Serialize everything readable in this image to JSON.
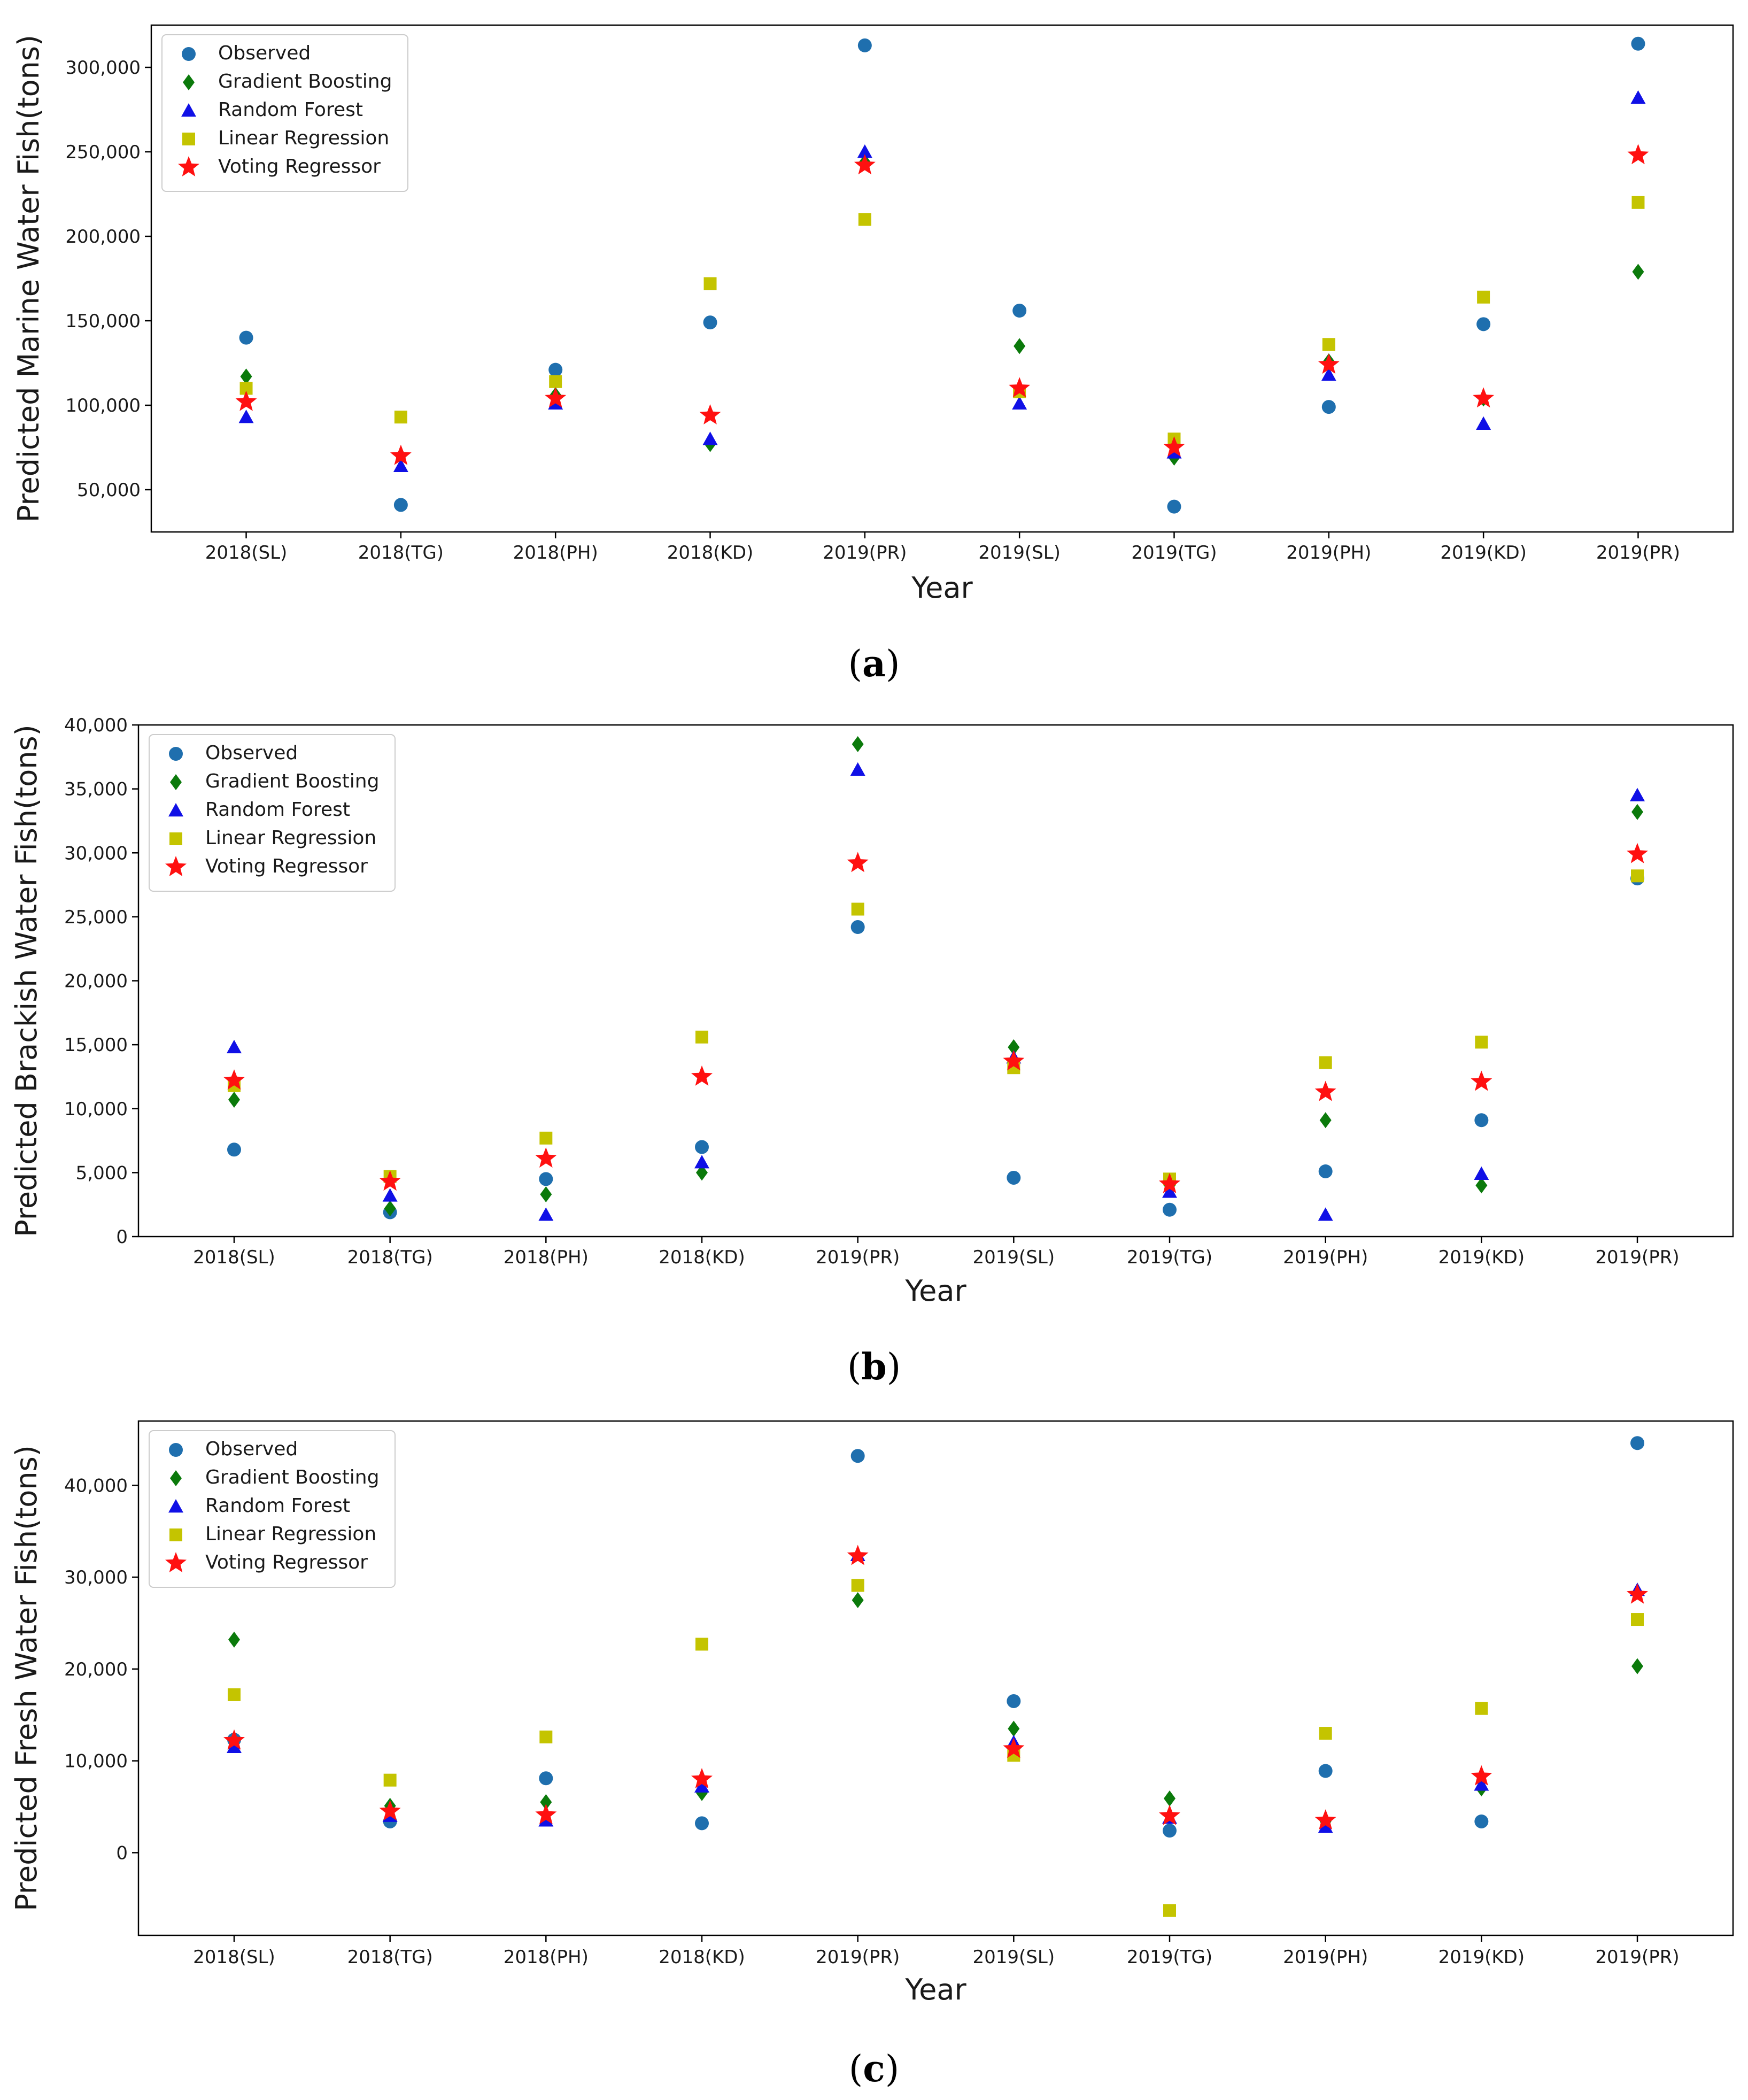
{
  "style": {
    "series_colors": {
      "Observed": "#1f6fae",
      "Gradient Boosting": "#0b7a0b",
      "Random Forest": "#1010e6",
      "Linear Regression": "#c4c400",
      "Voting Regressor": "#ff1010"
    },
    "series_markers": {
      "Observed": "circle",
      "Gradient Boosting": "diamond",
      "Random Forest": "triangle",
      "Linear Regression": "square",
      "Voting Regressor": "star"
    }
  },
  "chart_data": [
    {
      "type": "scatter",
      "panel_label": "a",
      "xlabel": "Year",
      "ylabel": "Predicted Marine Water Fish(tons)",
      "categories": [
        "2018(SL)",
        "2018(TG)",
        "2018(PH)",
        "2018(KD)",
        "2019(PR)",
        "2019(SL)",
        "2019(TG)",
        "2019(PH)",
        "2019(KD)",
        "2019(PR)"
      ],
      "ylim": [
        25000,
        325000
      ],
      "yticks": [
        50000,
        100000,
        150000,
        200000,
        250000,
        300000
      ],
      "ytick_labels": [
        "50,000",
        "100,000",
        "150,000",
        "200,000",
        "250,000",
        "300,000"
      ],
      "legend_position": "top-left",
      "series": [
        {
          "name": "Observed",
          "values": [
            140000,
            41000,
            121000,
            149000,
            313000,
            156000,
            40000,
            99000,
            148000,
            314000
          ]
        },
        {
          "name": "Gradient Boosting",
          "values": [
            117000,
            70000,
            106000,
            77000,
            244000,
            135000,
            69000,
            126000,
            104000,
            179000
          ]
        },
        {
          "name": "Random Forest",
          "values": [
            93000,
            64000,
            101000,
            80000,
            250000,
            101000,
            72000,
            118000,
            89000,
            282000
          ]
        },
        {
          "name": "Linear Regression",
          "values": [
            110000,
            93000,
            114000,
            172000,
            210000,
            108000,
            80000,
            136000,
            164000,
            220000
          ]
        },
        {
          "name": "Voting Regressor",
          "values": [
            102000,
            70000,
            104000,
            94000,
            242000,
            110000,
            75000,
            124000,
            104000,
            248000
          ]
        }
      ]
    },
    {
      "type": "scatter",
      "panel_label": "b",
      "xlabel": "Year",
      "ylabel": "Predicted Brackish Water Fish(tons)",
      "categories": [
        "2018(SL)",
        "2018(TG)",
        "2018(PH)",
        "2018(KD)",
        "2019(PR)",
        "2019(SL)",
        "2019(TG)",
        "2019(PH)",
        "2019(KD)",
        "2019(PR)"
      ],
      "ylim": [
        0,
        40000
      ],
      "yticks": [
        0,
        5000,
        10000,
        15000,
        20000,
        25000,
        30000,
        35000,
        40000
      ],
      "ytick_labels": [
        "0",
        "5,000",
        "10,000",
        "15,000",
        "20,000",
        "25,000",
        "30,000",
        "35,000",
        "40,000"
      ],
      "legend_position": "top-left",
      "series": [
        {
          "name": "Observed",
          "values": [
            6800,
            1900,
            4500,
            7000,
            24200,
            4600,
            2100,
            5100,
            9100,
            28000
          ]
        },
        {
          "name": "Gradient Boosting",
          "values": [
            10700,
            2200,
            3300,
            5000,
            38500,
            14800,
            4000,
            9100,
            4000,
            33200
          ]
        },
        {
          "name": "Random Forest",
          "values": [
            14800,
            3200,
            1700,
            5800,
            36500,
            14000,
            3500,
            1700,
            4900,
            34500
          ]
        },
        {
          "name": "Linear Regression",
          "values": [
            11800,
            4700,
            7700,
            15600,
            25600,
            13200,
            4500,
            13600,
            15200,
            28200
          ]
        },
        {
          "name": "Voting Regressor",
          "values": [
            12200,
            4300,
            6100,
            12500,
            29200,
            13700,
            4100,
            11300,
            12100,
            29900
          ]
        }
      ]
    },
    {
      "type": "scatter",
      "panel_label": "c",
      "xlabel": "Year",
      "ylabel": "Predicted Fresh Water Fish(tons)",
      "categories": [
        "2018(SL)",
        "2018(TG)",
        "2018(PH)",
        "2018(KD)",
        "2019(PR)",
        "2019(SL)",
        "2019(TG)",
        "2019(PH)",
        "2019(KD)",
        "2019(PR)"
      ],
      "ylim": [
        -9000,
        47000
      ],
      "yticks": [
        0,
        10000,
        20000,
        30000,
        40000
      ],
      "ytick_labels": [
        "0",
        "10,000",
        "20,000",
        "30,000",
        "40,000"
      ],
      "legend_position": "top-left",
      "series": [
        {
          "name": "Observed",
          "values": [
            12300,
            3400,
            8100,
            3200,
            43200,
            16500,
            2400,
            8900,
            3400,
            44600
          ]
        },
        {
          "name": "Gradient Boosting",
          "values": [
            23200,
            5100,
            5500,
            6500,
            27500,
            13500,
            5900,
            3400,
            7000,
            20300
          ]
        },
        {
          "name": "Random Forest",
          "values": [
            11500,
            4000,
            3500,
            7200,
            32400,
            12000,
            3800,
            2800,
            7400,
            28600
          ]
        },
        {
          "name": "Linear Regression",
          "values": [
            17200,
            7900,
            12600,
            22700,
            29100,
            10600,
            -6300,
            13000,
            15700,
            25400
          ]
        },
        {
          "name": "Voting Regressor",
          "values": [
            12200,
            4500,
            4100,
            8000,
            32300,
            11300,
            4000,
            3500,
            8300,
            28100
          ]
        }
      ]
    }
  ]
}
